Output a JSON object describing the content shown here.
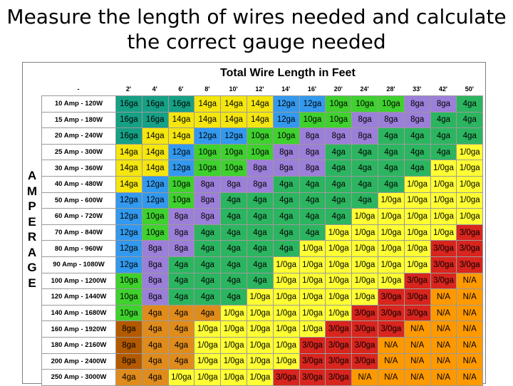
{
  "title": "Measure the length of wires needed and calculate the correct gauge needed",
  "table_title": "Total Wire Length in Feet",
  "corner": "-",
  "side_label": [
    "A",
    "M",
    "P",
    "E",
    "R",
    "A",
    "G",
    "E"
  ],
  "lengths": [
    "2'",
    "4'",
    "6'",
    "8'",
    "10'",
    "12'",
    "14'",
    "16'",
    "20'",
    "24'",
    "28'",
    "33'",
    "42'",
    "50'"
  ],
  "rows": [
    {
      "label": "10 Amp - 120W",
      "cells": [
        "16ga",
        "16ga",
        "16ga",
        "14ga",
        "14ga",
        "14ga",
        "12ga",
        "12ga",
        "10ga",
        "10ga",
        "10ga",
        "8ga",
        "8ga",
        "4ga"
      ]
    },
    {
      "label": "15 Amp - 180W",
      "cells": [
        "16ga",
        "16ga",
        "14ga",
        "14ga",
        "14ga",
        "14ga",
        "12ga",
        "10ga",
        "10ga",
        "8ga",
        "8ga",
        "8ga",
        "4ga",
        "4ga"
      ]
    },
    {
      "label": "20 Amp - 240W",
      "cells": [
        "16ga",
        "14ga",
        "14ga",
        "12ga",
        "12ga",
        "10ga",
        "10ga",
        "8ga",
        "8ga",
        "8ga",
        "4ga",
        "4ga",
        "4ga",
        "4ga"
      ]
    },
    {
      "label": "25 Amp - 300W",
      "cells": [
        "14ga",
        "14ga",
        "12ga",
        "10ga",
        "10ga",
        "10ga",
        "8ga",
        "8ga",
        "4ga",
        "4ga",
        "4ga",
        "4ga",
        "4ga",
        "1/0ga"
      ]
    },
    {
      "label": "30 Amp - 360W",
      "cells": [
        "14ga",
        "14ga",
        "12ga",
        "10ga",
        "10ga",
        "8ga",
        "8ga",
        "8ga",
        "4ga",
        "4ga",
        "4ga",
        "4ga",
        "1/0ga",
        "1/0ga"
      ]
    },
    {
      "label": "40 Amp - 480W",
      "cells": [
        "14ga",
        "12ga",
        "10ga",
        "8ga",
        "8ga",
        "8ga",
        "4ga",
        "4ga",
        "4ga",
        "4ga",
        "4ga",
        "1/0ga",
        "1/0ga",
        "1/0ga"
      ]
    },
    {
      "label": "50 Amp - 600W",
      "cells": [
        "12ga",
        "12ga",
        "10ga",
        "8ga",
        "4ga",
        "4ga",
        "4ga",
        "4ga",
        "4ga",
        "4ga",
        "1/0ga",
        "1/0ga",
        "1/0ga",
        "1/0ga"
      ]
    },
    {
      "label": "60 Amp - 720W",
      "cells": [
        "12ga",
        "10ga",
        "8ga",
        "8ga",
        "4ga",
        "4ga",
        "4ga",
        "4ga",
        "4ga",
        "1/0ga",
        "1/0ga",
        "1/0ga",
        "1/0ga",
        "1/0ga"
      ]
    },
    {
      "label": "70 Amp - 840W",
      "cells": [
        "12ga",
        "10ga",
        "8ga",
        "4ga",
        "4ga",
        "4ga",
        "4ga",
        "4ga",
        "1/0ga",
        "1/0ga",
        "1/0ga",
        "1/0ga",
        "1/0ga",
        "3/0ga"
      ]
    },
    {
      "label": "80 Amp - 960W",
      "cells": [
        "12ga",
        "8ga",
        "8ga",
        "4ga",
        "4ga",
        "4ga",
        "4ga",
        "1/0ga",
        "1/0ga",
        "1/0ga",
        "1/0ga",
        "1/0ga",
        "3/0ga",
        "3/0ga"
      ]
    },
    {
      "label": "90 Amp - 1080W",
      "cells": [
        "12ga",
        "8ga",
        "4ga",
        "4ga",
        "4ga",
        "4ga",
        "1/0ga",
        "1/0ga",
        "1/0ga",
        "1/0ga",
        "1/0ga",
        "1/0ga",
        "3/0ga",
        "3/0ga"
      ]
    },
    {
      "label": "100 Amp - 1200W",
      "cells": [
        "10ga",
        "8ga",
        "4ga",
        "4ga",
        "4ga",
        "4ga",
        "1/0ga",
        "1/0ga",
        "1/0ga",
        "1/0ga",
        "1/0ga",
        "3/0ga",
        "3/0ga",
        "N/A"
      ]
    },
    {
      "label": "120 Amp - 1440W",
      "cells": [
        "10ga",
        "8ga",
        "4ga",
        "4ga",
        "4ga",
        "1/0ga",
        "1/0ga",
        "1/0ga",
        "1/0ga",
        "1/0ga",
        "3/0ga",
        "3/0ga",
        "N/A",
        "N/A"
      ]
    },
    {
      "label": "140 Amp - 1680W",
      "cells": [
        "10ga",
        "4ga",
        "4ga",
        "4ga",
        "1/0ga",
        "1/0ga",
        "1/0ga",
        "1/0ga",
        "1/0ga",
        "3/0ga",
        "3/0ga",
        "3/0ga",
        "N/A",
        "N/A"
      ]
    },
    {
      "label": "160 Amp - 1920W",
      "cells": [
        "8ga",
        "4ga",
        "4ga",
        "1/0ga",
        "1/0ga",
        "1/0ga",
        "1/0ga",
        "1/0ga",
        "3/0ga",
        "3/0ga",
        "3/0ga",
        "N/A",
        "N/A",
        "N/A"
      ]
    },
    {
      "label": "180 Amp - 2160W",
      "cells": [
        "8ga",
        "4ga",
        "4ga",
        "1/0ga",
        "1/0ga",
        "1/0ga",
        "1/0ga",
        "3/0ga",
        "3/0ga",
        "3/0ga",
        "N/A",
        "N/A",
        "N/A",
        "N/A"
      ]
    },
    {
      "label": "200 Amp - 2400W",
      "cells": [
        "8ga",
        "4ga",
        "4ga",
        "1/0ga",
        "1/0ga",
        "1/0ga",
        "1/0ga",
        "3/0ga",
        "3/0ga",
        "3/0ga",
        "N/A",
        "N/A",
        "N/A",
        "N/A"
      ]
    },
    {
      "label": "250 Amp - 3000W",
      "cells": [
        "4ga",
        "4ga",
        "1/0ga",
        "1/0ga",
        "1/0ga",
        "1/0ga",
        "3/0ga",
        "3/0ga",
        "3/0ga",
        "N/A",
        "N/A",
        "N/A",
        "N/A",
        "N/A"
      ]
    }
  ],
  "colors": {
    "16ga": "#16a085",
    "14ga": "#f4e60e",
    "12ga": "#3399ee",
    "10ga": "#3fd12e",
    "8ga": "#9c7fd9",
    "4ga": "#2cb560",
    "1/0ga": "#ffff33",
    "3/0ga": "#d8251e",
    "N/A": "#ff9900"
  }
}
